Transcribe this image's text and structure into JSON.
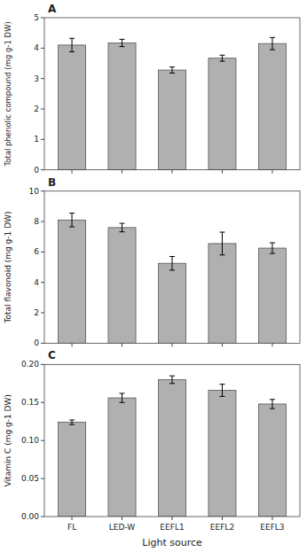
{
  "chart_data": [
    {
      "type": "bar",
      "title": "A",
      "categories": [
        "FL",
        "LED-W",
        "EEFL1",
        "EEFL2",
        "EEFL3"
      ],
      "values": [
        4.1,
        4.17,
        3.28,
        3.67,
        4.15
      ],
      "errors": [
        0.22,
        0.12,
        0.1,
        0.1,
        0.2
      ],
      "color": "#b0b0b0",
      "ylabel": "Total phenolic compound (mg g-1 DW)",
      "ylim": [
        0,
        5
      ],
      "yticks": [
        0,
        1,
        2,
        3,
        4,
        5
      ],
      "grid": false,
      "tick_labels": "y"
    },
    {
      "type": "bar",
      "title": "B",
      "categories": [
        "FL",
        "LED-W",
        "EEFL1",
        "EEFL2",
        "EEFL3"
      ],
      "values": [
        8.1,
        7.6,
        5.25,
        6.55,
        6.25
      ],
      "errors": [
        0.45,
        0.28,
        0.45,
        0.75,
        0.35
      ],
      "color": "#b0b0b0",
      "ylabel": "Total flavonoid (mg g-1 DW)",
      "ylim": [
        0,
        10
      ],
      "yticks": [
        0,
        2,
        4,
        6,
        8,
        10
      ],
      "grid": false,
      "tick_labels": "y"
    },
    {
      "type": "bar",
      "title": "C",
      "categories": [
        "FL",
        "LED-W",
        "EEFL1",
        "EEFL2",
        "EEFL3"
      ],
      "values": [
        0.124,
        0.156,
        0.18,
        0.166,
        0.148
      ],
      "errors": [
        0.003,
        0.006,
        0.005,
        0.008,
        0.006
      ],
      "color": "#b0b0b0",
      "ylabel": "Vitamin C (mg g-1 DW)",
      "xlabel": "Light source",
      "ylim": [
        0.0,
        0.2
      ],
      "yticks": [
        {
          "value": 0,
          "label": "0.00"
        },
        0.05,
        {
          "value": 0.1,
          "label": "0.10"
        },
        0.15,
        {
          "value": 0.2,
          "label": "0.20"
        }
      ],
      "grid": false
    }
  ]
}
